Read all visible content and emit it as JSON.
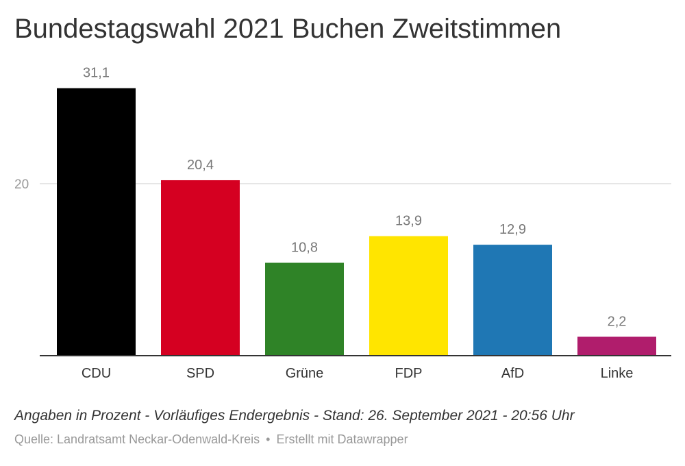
{
  "title": "Bundestagswahl 2021 Buchen Zweitstimmen",
  "notes": "Angaben in Prozent - Vorläufiges Endergebnis - Stand: 26. September 2021 - 20:56 Uhr",
  "source": {
    "label": "Quelle: Landratsamt Neckar-Odenwald-Kreis",
    "separator": "•",
    "credit": "Erstellt mit Datawrapper"
  },
  "chart_data": {
    "type": "bar",
    "categories": [
      "CDU",
      "SPD",
      "Grüne",
      "FDP",
      "AfD",
      "Linke"
    ],
    "values": [
      31.1,
      20.4,
      10.8,
      13.9,
      12.9,
      2.2
    ],
    "value_labels": [
      "31,1",
      "20,4",
      "10,8",
      "13,9",
      "12,9",
      "2,2"
    ],
    "colors": [
      "#000000",
      "#d50021",
      "#2f8327",
      "#ffe500",
      "#1f77b4",
      "#b01d6c"
    ],
    "yticks": [
      20
    ],
    "ytick_labels": [
      "20"
    ],
    "ylim": [
      0,
      31.1
    ],
    "grid": true,
    "xlabel": "",
    "ylabel": ""
  }
}
